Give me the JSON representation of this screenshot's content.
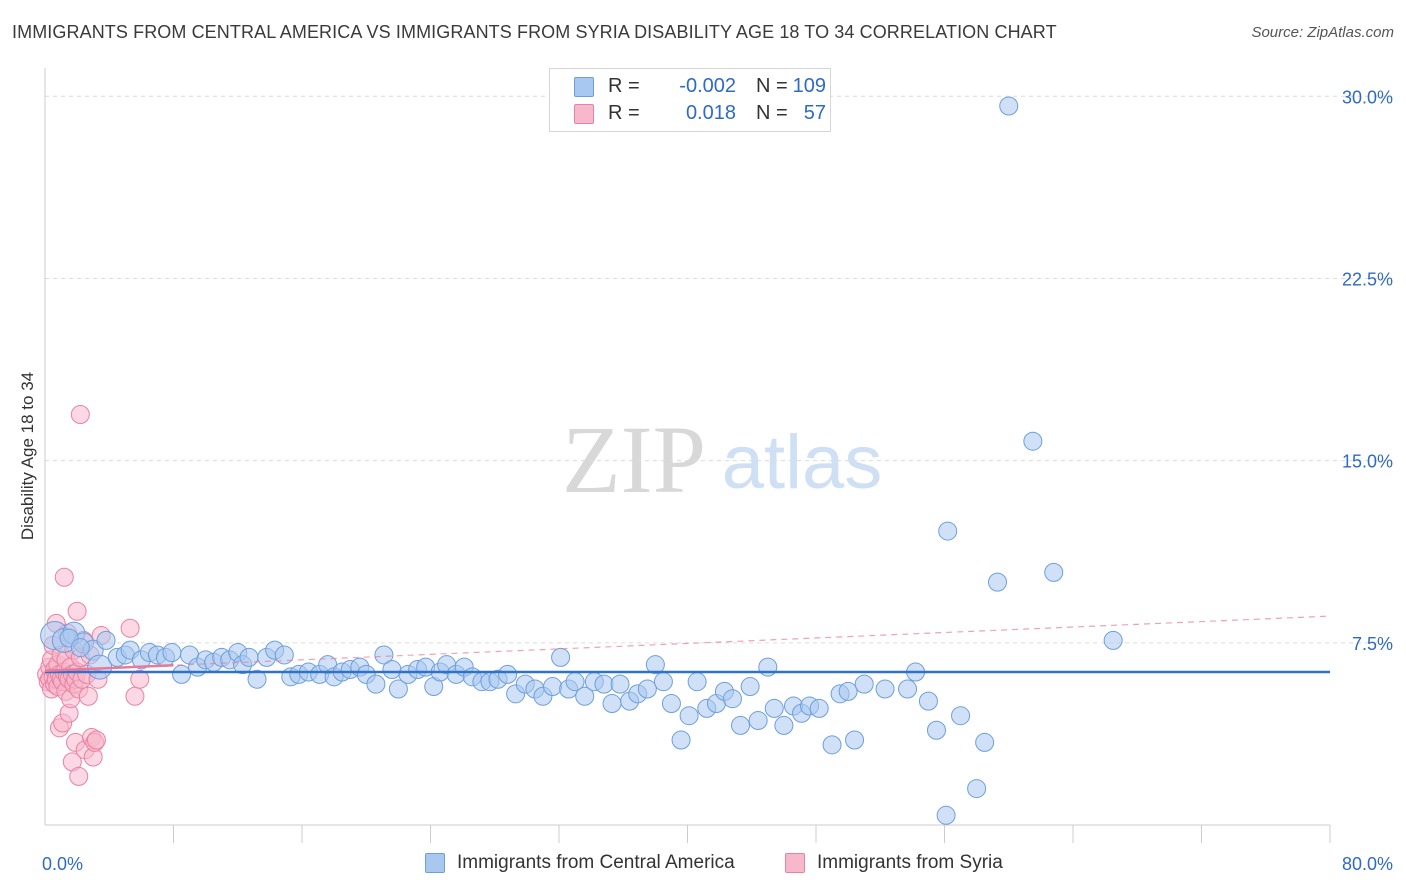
{
  "header": {
    "title": "IMMIGRANTS FROM CENTRAL AMERICA VS IMMIGRANTS FROM SYRIA DISABILITY AGE 18 TO 34 CORRELATION CHART",
    "source": "Source: ZipAtlas.com"
  },
  "watermark": {
    "zip": "ZIP",
    "atlas": "atlas"
  },
  "legend_top": {
    "rows": [
      {
        "r_label": "R =",
        "r_value": "-0.002",
        "n_label": "N =",
        "n_value": "109"
      },
      {
        "r_label": "R =",
        "r_value": "0.018",
        "n_label": "N =",
        "n_value": "57"
      }
    ]
  },
  "legend_bottom": {
    "items": [
      {
        "label": "Immigrants from Central America"
      },
      {
        "label": "Immigrants from Syria"
      }
    ]
  },
  "colors": {
    "blue_fill": "#a9c8f0",
    "blue_stroke": "#6d9fdc",
    "blue_line": "#2f72c8",
    "pink_fill": "#f7b8cc",
    "pink_stroke": "#e882a3",
    "pink_line": "#e8799b",
    "axis_tick_text": "#2f6bc4",
    "grid": "#dcdcdc"
  },
  "chart_data": {
    "type": "scatter",
    "title": "IMMIGRANTS FROM CENTRAL AMERICA VS IMMIGRANTS FROM SYRIA DISABILITY AGE 18 TO 34 CORRELATION CHART",
    "xlabel": "",
    "ylabel": "Disability Age 18 to 34",
    "xlim": [
      0,
      80
    ],
    "ylim": [
      0,
      31
    ],
    "x_tick_labels": [
      {
        "value": 0,
        "label": "0.0%"
      },
      {
        "value": 80,
        "label": "80.0%"
      }
    ],
    "x_minor_ticks": [
      8,
      16,
      24,
      32,
      40,
      48,
      56,
      64,
      72,
      80
    ],
    "y_ticks": [
      {
        "value": 7.5,
        "label": "7.5%"
      },
      {
        "value": 15.0,
        "label": "15.0%"
      },
      {
        "value": 22.5,
        "label": "22.5%"
      },
      {
        "value": 30.0,
        "label": "30.0%"
      }
    ],
    "grid": true,
    "series": [
      {
        "name": "Immigrants from Central America",
        "color": "blue",
        "r": -0.002,
        "n": 109,
        "trend": {
          "x0": 0,
          "y0": 6.3,
          "x1": 80,
          "y1": 6.3,
          "dashed": false
        },
        "points": [
          [
            0.6,
            7.8,
            14
          ],
          [
            1.2,
            7.6,
            12
          ],
          [
            1.8,
            7.9,
            11
          ],
          [
            2.4,
            7.5,
            10
          ],
          [
            3.0,
            7.2,
            10
          ],
          [
            3.4,
            6.5,
            12
          ],
          [
            3.8,
            7.6,
            9
          ],
          [
            4.5,
            6.9,
            9
          ],
          [
            5.0,
            7.0,
            9
          ],
          [
            5.3,
            7.2,
            9
          ],
          [
            6.0,
            6.8,
            9
          ],
          [
            6.5,
            7.1,
            9
          ],
          [
            7.0,
            7.0,
            9
          ],
          [
            7.5,
            6.9,
            9
          ],
          [
            7.9,
            7.1,
            9
          ],
          [
            8.5,
            6.2,
            9
          ],
          [
            9.0,
            7.0,
            9
          ],
          [
            9.5,
            6.5,
            9
          ],
          [
            10.0,
            6.8,
            9
          ],
          [
            10.5,
            6.7,
            9
          ],
          [
            11.0,
            6.9,
            9
          ],
          [
            11.5,
            6.8,
            9
          ],
          [
            12.0,
            7.1,
            9
          ],
          [
            12.3,
            6.6,
            9
          ],
          [
            12.7,
            6.9,
            9
          ],
          [
            13.2,
            6.0,
            9
          ],
          [
            13.8,
            6.9,
            9
          ],
          [
            14.3,
            7.2,
            9
          ],
          [
            14.9,
            7.0,
            9
          ],
          [
            15.3,
            6.1,
            9
          ],
          [
            15.8,
            6.2,
            9
          ],
          [
            16.4,
            6.3,
            9
          ],
          [
            17.1,
            6.2,
            9
          ],
          [
            17.6,
            6.6,
            9
          ],
          [
            18.0,
            6.1,
            9
          ],
          [
            18.5,
            6.3,
            9
          ],
          [
            19.0,
            6.4,
            9
          ],
          [
            19.6,
            6.5,
            9
          ],
          [
            20.0,
            6.2,
            9
          ],
          [
            20.6,
            5.8,
            9
          ],
          [
            21.1,
            7.0,
            9
          ],
          [
            21.6,
            6.4,
            9
          ],
          [
            22.0,
            5.6,
            9
          ],
          [
            22.6,
            6.2,
            9
          ],
          [
            23.2,
            6.4,
            9
          ],
          [
            23.7,
            6.5,
            9
          ],
          [
            24.2,
            5.7,
            9
          ],
          [
            24.6,
            6.3,
            9
          ],
          [
            25.0,
            6.6,
            9
          ],
          [
            25.6,
            6.2,
            9
          ],
          [
            26.1,
            6.5,
            9
          ],
          [
            26.6,
            6.1,
            9
          ],
          [
            27.2,
            5.9,
            9
          ],
          [
            27.7,
            5.9,
            9
          ],
          [
            28.2,
            6.0,
            9
          ],
          [
            28.8,
            6.2,
            9
          ],
          [
            29.3,
            5.4,
            9
          ],
          [
            29.9,
            5.8,
            9
          ],
          [
            30.5,
            5.6,
            9
          ],
          [
            31.0,
            5.3,
            9
          ],
          [
            31.6,
            5.7,
            9
          ],
          [
            32.1,
            6.9,
            9
          ],
          [
            32.6,
            5.6,
            9
          ],
          [
            33.0,
            5.9,
            9
          ],
          [
            33.6,
            5.3,
            9
          ],
          [
            34.2,
            5.9,
            9
          ],
          [
            34.8,
            5.8,
            9
          ],
          [
            35.3,
            5.0,
            9
          ],
          [
            35.8,
            5.8,
            9
          ],
          [
            36.4,
            5.1,
            9
          ],
          [
            36.9,
            5.4,
            9
          ],
          [
            37.5,
            5.6,
            9
          ],
          [
            38.0,
            6.6,
            9
          ],
          [
            38.5,
            5.9,
            9
          ],
          [
            39.0,
            5.0,
            9
          ],
          [
            39.6,
            3.5,
            9
          ],
          [
            40.1,
            4.5,
            9
          ],
          [
            40.6,
            5.9,
            9
          ],
          [
            41.2,
            4.8,
            9
          ],
          [
            41.8,
            5.0,
            9
          ],
          [
            42.3,
            5.5,
            9
          ],
          [
            42.8,
            5.2,
            9
          ],
          [
            43.3,
            4.1,
            9
          ],
          [
            43.9,
            5.7,
            9
          ],
          [
            44.4,
            4.3,
            9
          ],
          [
            45.0,
            6.5,
            9
          ],
          [
            45.4,
            4.8,
            9
          ],
          [
            46.0,
            4.1,
            9
          ],
          [
            46.6,
            4.9,
            9
          ],
          [
            47.1,
            4.6,
            9
          ],
          [
            47.6,
            4.9,
            9
          ],
          [
            48.2,
            4.8,
            9
          ],
          [
            49.0,
            3.3,
            9
          ],
          [
            49.5,
            5.4,
            9
          ],
          [
            50.0,
            5.5,
            9
          ],
          [
            50.4,
            3.5,
            9
          ],
          [
            51.0,
            5.8,
            9
          ],
          [
            52.3,
            5.6,
            9
          ],
          [
            53.7,
            5.6,
            9
          ],
          [
            54.2,
            6.3,
            9
          ],
          [
            55.0,
            5.1,
            9
          ],
          [
            55.5,
            3.9,
            9
          ],
          [
            56.2,
            12.1,
            9
          ],
          [
            57.0,
            4.5,
            9
          ],
          [
            58.0,
            1.5,
            9
          ],
          [
            58.5,
            3.4,
            9
          ],
          [
            56.1,
            0.4,
            9
          ],
          [
            59.3,
            10.0,
            9
          ],
          [
            60.0,
            29.6,
            9
          ],
          [
            61.5,
            15.8,
            9
          ],
          [
            62.8,
            10.4,
            9
          ],
          [
            66.5,
            7.6,
            9
          ],
          [
            1.5,
            7.7,
            9
          ],
          [
            2.2,
            7.3,
            9
          ]
        ]
      },
      {
        "name": "Immigrants from Syria",
        "color": "pink",
        "r": 0.018,
        "n": 57,
        "trend": {
          "x0": 0,
          "y0": 6.35,
          "x1": 80,
          "y1": 8.6,
          "dashed": true
        },
        "points": [
          [
            0.1,
            6.2,
            9
          ],
          [
            0.2,
            5.9,
            9
          ],
          [
            0.3,
            6.5,
            9
          ],
          [
            0.3,
            6.0,
            9
          ],
          [
            0.4,
            5.6,
            9
          ],
          [
            0.4,
            6.8,
            9
          ],
          [
            0.5,
            6.1,
            9
          ],
          [
            0.5,
            7.4,
            9
          ],
          [
            0.6,
            5.8,
            9
          ],
          [
            0.6,
            6.4,
            9
          ],
          [
            0.7,
            6.0,
            9
          ],
          [
            0.7,
            8.3,
            9
          ],
          [
            0.8,
            6.6,
            9
          ],
          [
            0.8,
            5.7,
            9
          ],
          [
            0.9,
            6.2,
            9
          ],
          [
            0.9,
            4.0,
            9
          ],
          [
            1.0,
            7.0,
            9
          ],
          [
            1.0,
            6.0,
            9
          ],
          [
            1.1,
            5.9,
            9
          ],
          [
            1.1,
            4.2,
            9
          ],
          [
            1.2,
            10.2,
            9
          ],
          [
            1.2,
            6.3,
            9
          ],
          [
            1.3,
            6.8,
            9
          ],
          [
            1.3,
            5.5,
            9
          ],
          [
            1.4,
            6.1,
            9
          ],
          [
            1.4,
            7.9,
            9
          ],
          [
            1.5,
            6.0,
            9
          ],
          [
            1.5,
            4.6,
            9
          ],
          [
            1.6,
            6.5,
            9
          ],
          [
            1.6,
            5.2,
            9
          ],
          [
            1.7,
            2.6,
            9
          ],
          [
            1.7,
            6.2,
            9
          ],
          [
            1.8,
            5.8,
            9
          ],
          [
            1.8,
            7.2,
            9
          ],
          [
            1.9,
            6.0,
            9
          ],
          [
            1.9,
            3.4,
            9
          ],
          [
            2.0,
            8.8,
            9
          ],
          [
            2.0,
            6.3,
            9
          ],
          [
            2.1,
            2.0,
            9
          ],
          [
            2.1,
            5.6,
            9
          ],
          [
            2.2,
            6.9,
            9
          ],
          [
            2.2,
            16.9,
            9
          ],
          [
            2.3,
            6.0,
            9
          ],
          [
            2.4,
            7.6,
            9
          ],
          [
            2.5,
            3.1,
            9
          ],
          [
            2.6,
            6.2,
            9
          ],
          [
            2.7,
            5.3,
            9
          ],
          [
            2.8,
            7.0,
            9
          ],
          [
            2.9,
            3.6,
            9
          ],
          [
            3.0,
            2.8,
            9
          ],
          [
            3.1,
            3.4,
            9
          ],
          [
            3.2,
            3.5,
            9
          ],
          [
            3.3,
            6.0,
            9
          ],
          [
            3.5,
            7.8,
            9
          ],
          [
            5.3,
            8.1,
            9
          ],
          [
            5.6,
            5.3,
            9
          ],
          [
            5.9,
            6.0,
            9
          ]
        ]
      }
    ]
  }
}
